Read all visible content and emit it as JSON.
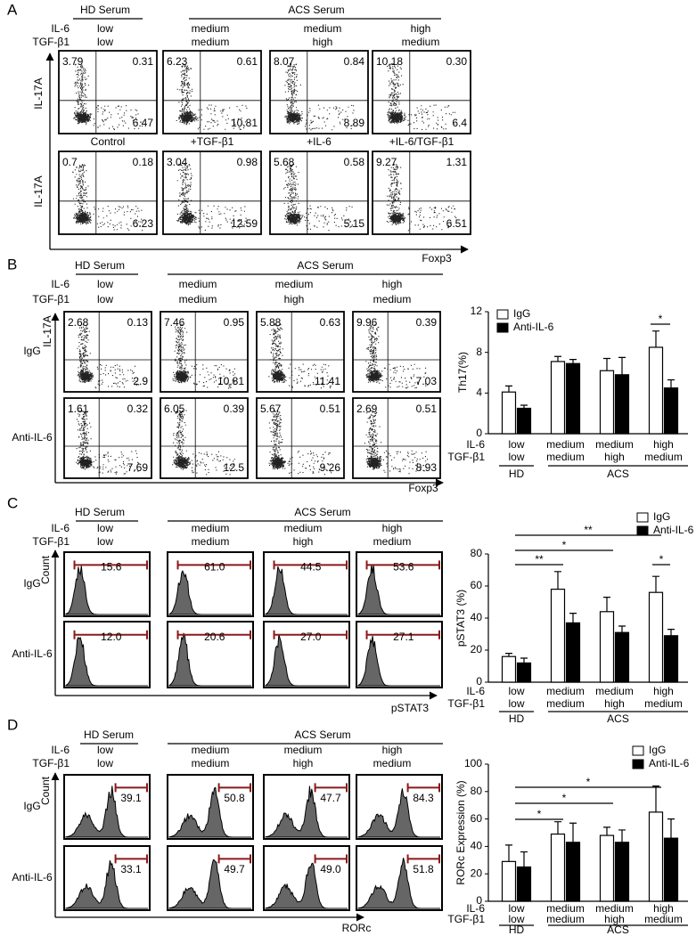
{
  "panels": [
    {
      "label": "A",
      "hd": "HD Serum",
      "acs": "ACS Serum",
      "rows": [
        "IL-6",
        "TGF-β1"
      ],
      "conditions": [
        [
          "low",
          "low"
        ],
        [
          "medium",
          "medium"
        ],
        [
          "medium",
          "high"
        ],
        [
          "high",
          "medium"
        ]
      ],
      "y_axis": "IL-17A",
      "x_axis": "Foxp3",
      "plot_rows": [
        {
          "cells": [
            [
              "3.79",
              "0.31",
              "6.47"
            ],
            [
              "6.23",
              "0.61",
              "10.81"
            ],
            [
              "8.07",
              "0.84",
              "8.89"
            ],
            [
              "10.18",
              "0.30",
              "6.4"
            ]
          ]
        },
        {
          "titles": [
            "Control",
            "+TGF-β1",
            "+IL-6",
            "+IL-6/TGF-β1"
          ],
          "cells": [
            [
              "0.7",
              "0.18",
              "6.23"
            ],
            [
              "3.04",
              "0.98",
              "12.59"
            ],
            [
              "5.68",
              "0.58",
              "5.15"
            ],
            [
              "9.27",
              "1.31",
              "6.51"
            ]
          ]
        }
      ]
    },
    {
      "label": "B",
      "hd": "HD Serum",
      "acs": "ACS Serum",
      "rows": [
        "IL-6",
        "TGF-β1"
      ],
      "conditions": [
        [
          "low",
          "low"
        ],
        [
          "medium",
          "medium"
        ],
        [
          "medium",
          "high"
        ],
        [
          "high",
          "medium"
        ]
      ],
      "y_axis": "IL-17A",
      "x_axis": "Foxp3",
      "plot_rows": [
        {
          "label": "IgG",
          "cells": [
            [
              "2.68",
              "0.13",
              "2.9"
            ],
            [
              "7.46",
              "0.95",
              "10.81"
            ],
            [
              "5.88",
              "0.63",
              "11.41"
            ],
            [
              "9.96",
              "0.39",
              "7.03"
            ]
          ]
        },
        {
          "label": "Anti-IL-6",
          "cells": [
            [
              "1.61",
              "0.32",
              "7.69"
            ],
            [
              "6.05",
              "0.39",
              "12.5"
            ],
            [
              "5.67",
              "0.51",
              "9.26"
            ],
            [
              "2.69",
              "0.51",
              "8.93"
            ]
          ]
        }
      ]
    },
    {
      "label": "C",
      "hd": "HD Serum",
      "acs": "ACS Serum",
      "rows": [
        "IL-6",
        "TGF-β1"
      ],
      "conditions": [
        [
          "low",
          "low"
        ],
        [
          "medium",
          "medium"
        ],
        [
          "medium",
          "high"
        ],
        [
          "high",
          "medium"
        ]
      ],
      "y_axis": "Count",
      "x_axis": "pSTAT3",
      "plot_rows": [
        {
          "label": "IgG",
          "cells": [
            "15.6",
            "61.0",
            "44.5",
            "53.6"
          ]
        },
        {
          "label": "Anti-IL-6",
          "cells": [
            "12.0",
            "20.6",
            "27.0",
            "27.1"
          ]
        }
      ]
    },
    {
      "label": "D",
      "hd": "HD Serum",
      "acs": "ACS Serum",
      "rows": [
        "IL-6",
        "TGF-β1"
      ],
      "conditions": [
        [
          "low",
          "low"
        ],
        [
          "medium",
          "medium"
        ],
        [
          "medium",
          "high"
        ],
        [
          "high",
          "medium"
        ]
      ],
      "y_axis": "Count",
      "x_axis": "RORc",
      "plot_rows": [
        {
          "label": "IgG",
          "cells": [
            "39.1",
            "50.8",
            "47.7",
            "84.3"
          ]
        },
        {
          "label": "Anti-IL-6",
          "cells": [
            "33.1",
            "49.7",
            "49.0",
            "51.8"
          ]
        }
      ]
    }
  ],
  "chart_data": [
    {
      "type": "bar",
      "ylabel": "Th17(%)",
      "ylim": [
        0,
        12
      ],
      "yticks": [
        0,
        4,
        8,
        12
      ],
      "x_labels": [
        {
          "name": "IL-6",
          "categories": [
            "low",
            "medium",
            "medium",
            "high"
          ]
        },
        {
          "name": "TGF-β1",
          "categories": [
            "low",
            "medium",
            "high",
            "medium"
          ]
        }
      ],
      "groups": [
        "HD",
        "ACS"
      ],
      "series": [
        {
          "name": "IgG",
          "color": "#ffffff",
          "values": [
            4.1,
            7.1,
            6.2,
            8.5
          ],
          "errors": [
            0.6,
            0.5,
            1.2,
            1.6
          ]
        },
        {
          "name": "Anti-IL-6",
          "color": "#000000",
          "values": [
            2.5,
            6.9,
            5.8,
            4.5
          ],
          "errors": [
            0.3,
            0.4,
            1.7,
            0.8
          ]
        }
      ],
      "annotations": [
        "*"
      ]
    },
    {
      "type": "bar",
      "ylabel": "pSTAT3 (%)",
      "ylim": [
        0,
        80
      ],
      "yticks": [
        0,
        20,
        40,
        60,
        80
      ],
      "x_labels": [
        {
          "name": "IL-6",
          "categories": [
            "low",
            "medium",
            "medium",
            "high"
          ]
        },
        {
          "name": "TGF-β1",
          "categories": [
            "low",
            "medium",
            "high",
            "medium"
          ]
        }
      ],
      "groups": [
        "HD",
        "ACS"
      ],
      "series": [
        {
          "name": "IgG",
          "color": "#ffffff",
          "values": [
            16,
            58,
            44,
            56
          ],
          "errors": [
            2,
            11,
            9,
            10
          ]
        },
        {
          "name": "Anti-IL-6",
          "color": "#000000",
          "values": [
            12,
            37,
            31,
            29
          ],
          "errors": [
            3,
            6,
            4,
            4
          ]
        }
      ],
      "annotations": [
        "**",
        "*",
        "**",
        "*"
      ]
    },
    {
      "type": "bar",
      "ylabel": "RORc Expression (%)",
      "ylim": [
        0,
        100
      ],
      "yticks": [
        0,
        20,
        40,
        60,
        80,
        100
      ],
      "x_labels": [
        {
          "name": "IL-6",
          "categories": [
            "low",
            "medium",
            "medium",
            "high"
          ]
        },
        {
          "name": "TGF-β1",
          "categories": [
            "low",
            "medium",
            "high",
            "medium"
          ]
        }
      ],
      "groups": [
        "HD",
        "ACS"
      ],
      "series": [
        {
          "name": "IgG",
          "color": "#ffffff",
          "values": [
            29,
            49,
            48,
            65
          ],
          "errors": [
            12,
            9,
            6,
            19
          ]
        },
        {
          "name": "Anti-IL-6",
          "color": "#000000",
          "values": [
            25,
            43,
            43,
            46
          ],
          "errors": [
            11,
            14,
            9,
            14
          ]
        }
      ],
      "annotations": [
        "*",
        "*",
        "*"
      ]
    }
  ]
}
